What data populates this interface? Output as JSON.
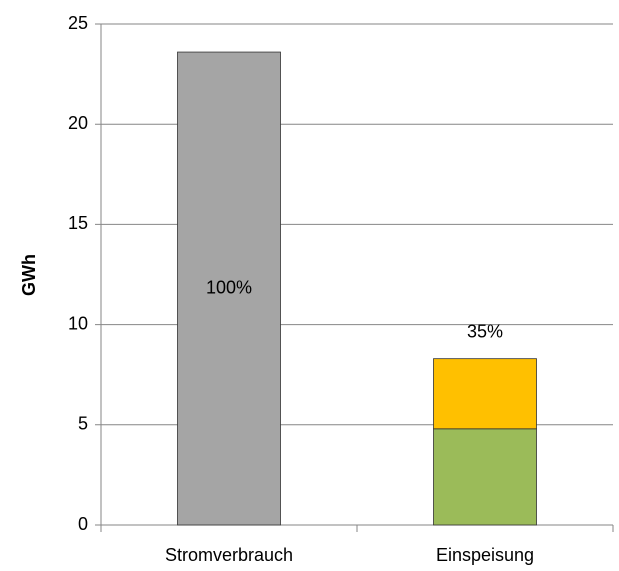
{
  "chart_data": {
    "type": "bar",
    "stacked": true,
    "y_label": "GWh",
    "categories": [
      "Stromverbrauch",
      "Einspeisung"
    ],
    "series": [
      {
        "color": "#a5a5a5",
        "values": [
          23.6,
          null
        ]
      },
      {
        "color": "#9bbb59",
        "values": [
          null,
          4.8
        ]
      },
      {
        "color": "#ffc000",
        "values": [
          null,
          3.5
        ]
      }
    ],
    "annotations": [
      "100%",
      "35%"
    ],
    "ylim": [
      0,
      25
    ],
    "yticks": [
      0,
      5,
      10,
      15,
      20,
      25
    ],
    "grid": true
  }
}
